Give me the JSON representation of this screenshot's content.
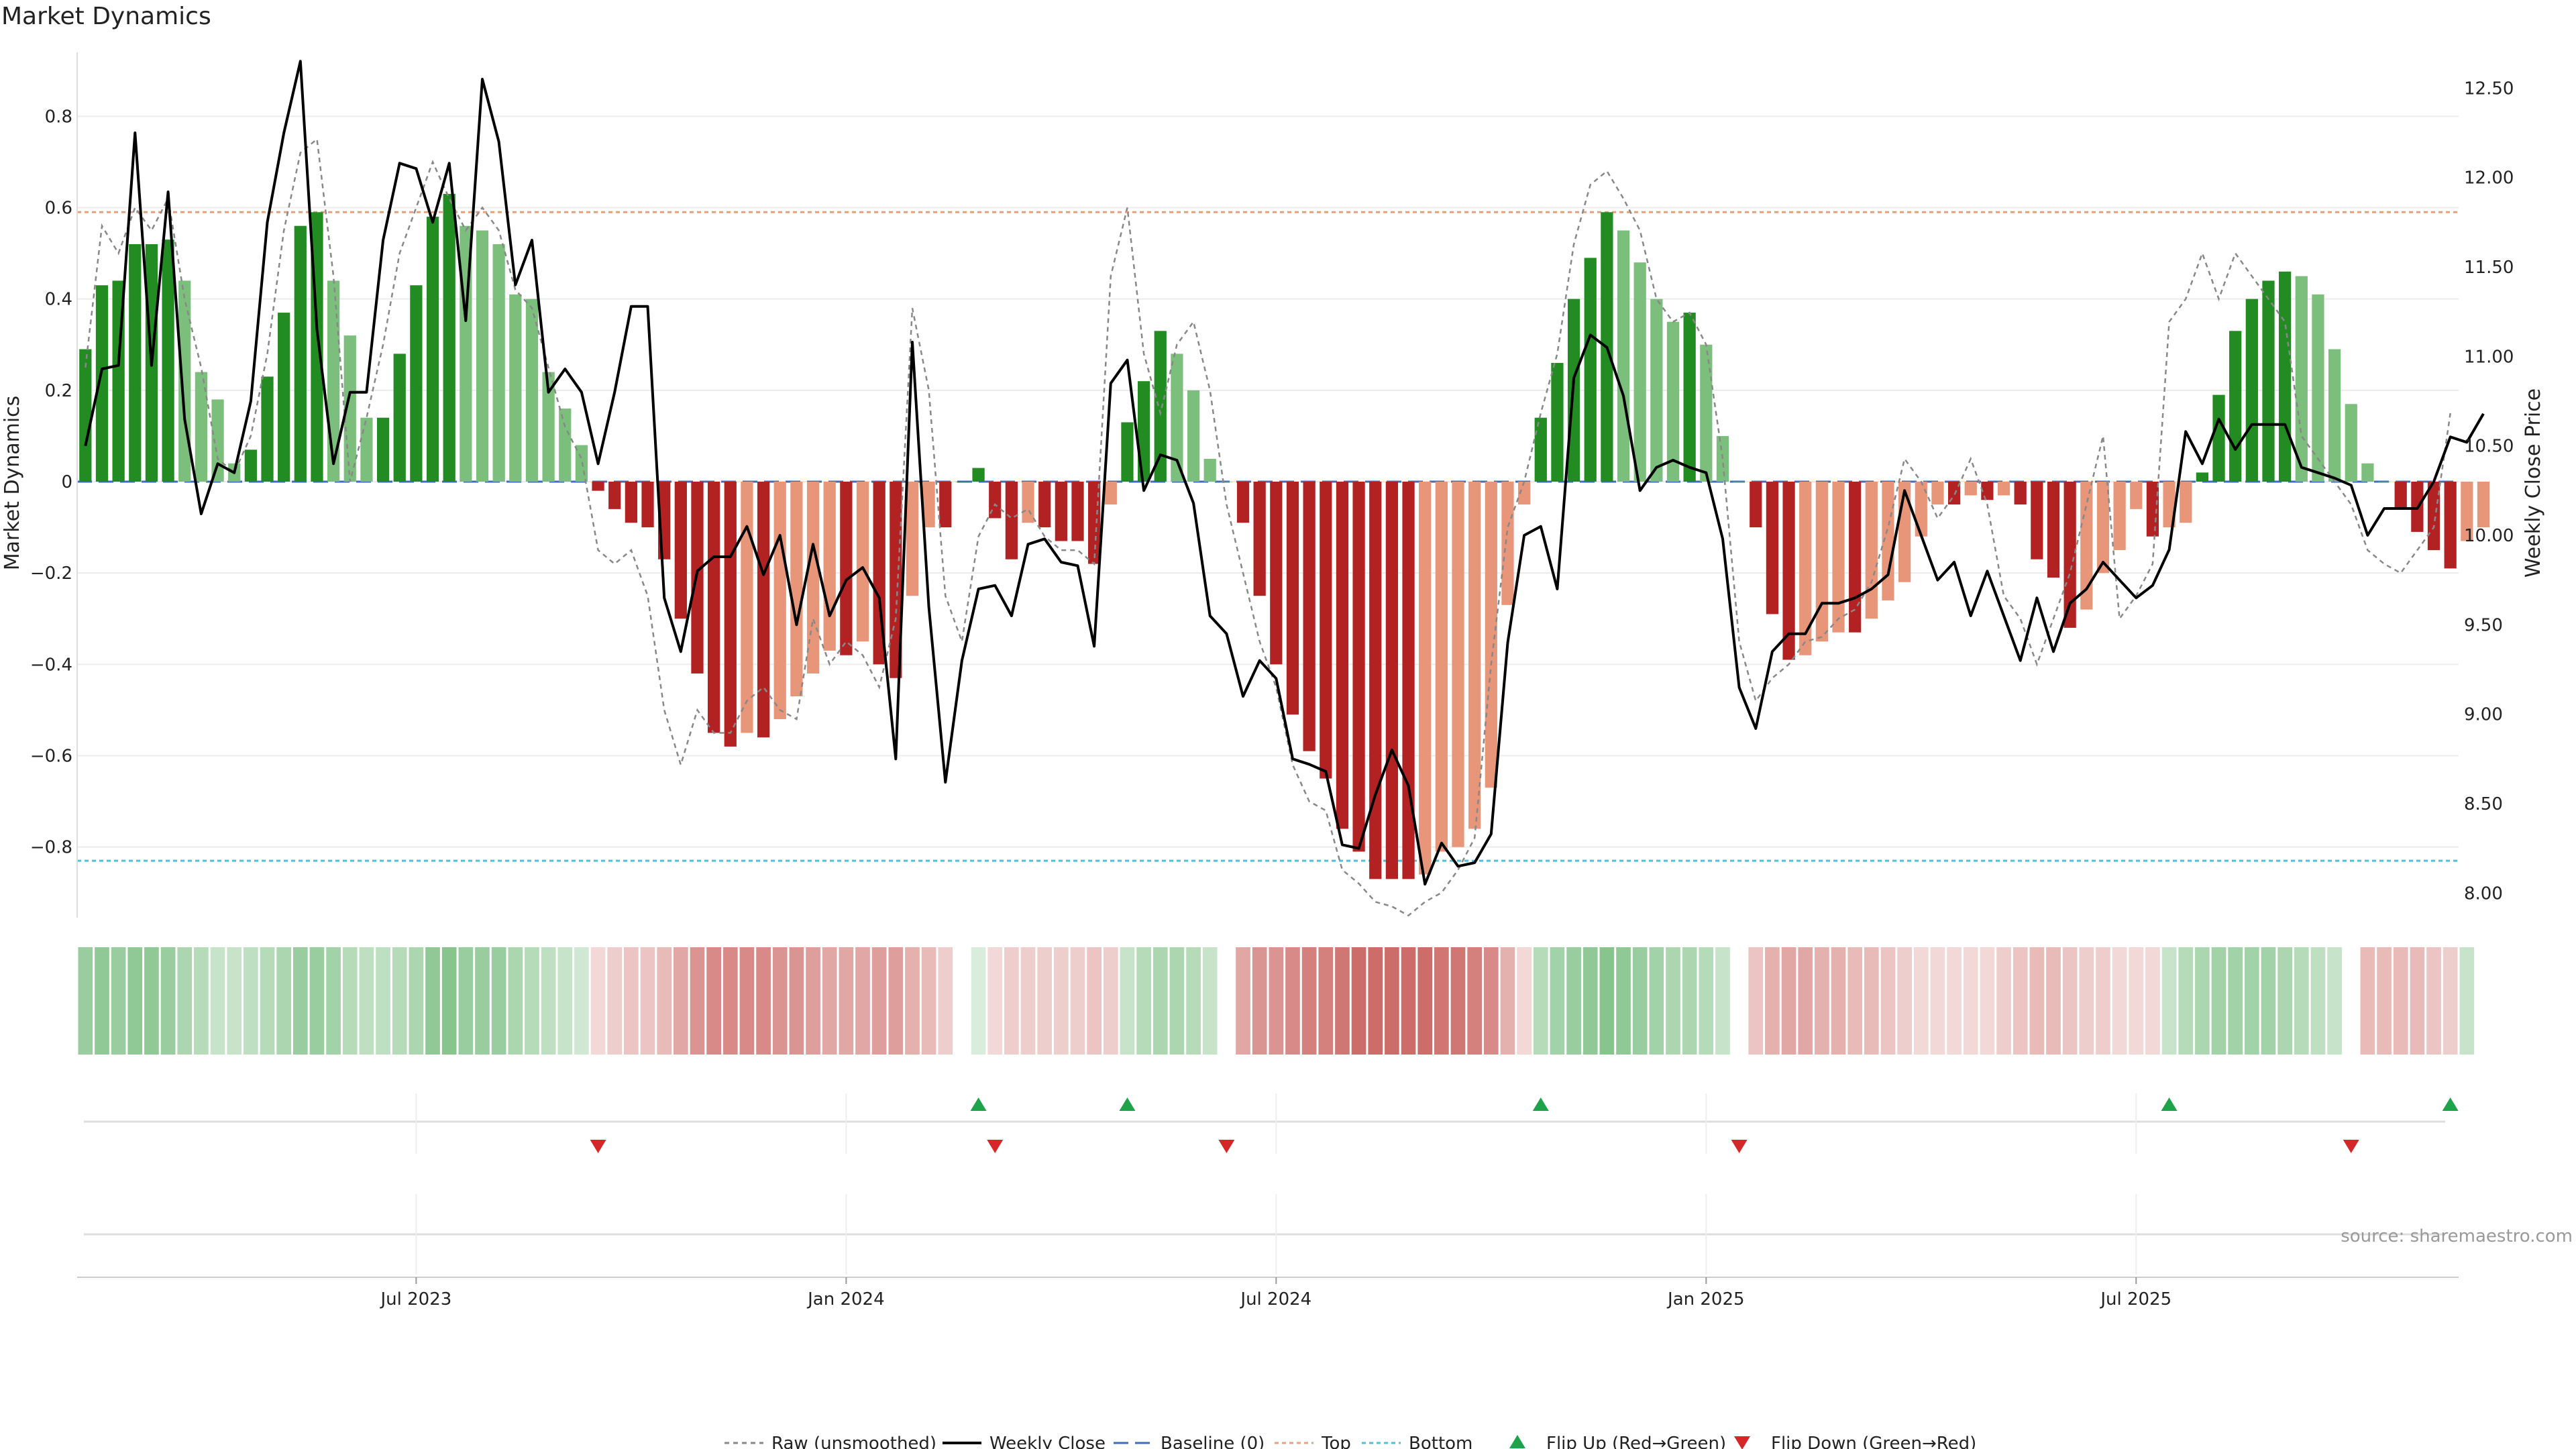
{
  "title": "Market Dynamics",
  "source": "source: sharemaestro.com",
  "colors": {
    "strong_green": "#228B22",
    "light_green": "#7CBF7C",
    "strong_red": "#B22222",
    "light_red": "#E8967A",
    "price_line": "#000000",
    "raw_line": "#888888",
    "baseline": "#3B6FB6",
    "top": "#E8A07C",
    "bottom": "#4FC1D6",
    "flip_up": "#1FA34A",
    "flip_down": "#D62728"
  },
  "legend": [
    "Raw (unsmoothed)",
    "Weekly Close",
    "Baseline (0)",
    "Top",
    "Bottom",
    "Flip Up (Red→Green)",
    "Flip Down (Green→Red)"
  ],
  "chart_data": {
    "type": "bar",
    "ylabel_left": "Market Dynamics",
    "ylabel_right": "Weekly Close Price",
    "left_ticks": [
      "0.8",
      "0.6",
      "0.4",
      "0.2",
      "0",
      "−0.2",
      "−0.4",
      "−0.6",
      "−0.8"
    ],
    "right_ticks": [
      "12.50",
      "12.00",
      "11.50",
      "11.00",
      "10.50",
      "10.00",
      "9.50",
      "9.00",
      "8.50",
      "8.00"
    ],
    "x_ticks": [
      "Jul 2023",
      "Jan 2024",
      "Jul 2024",
      "Jan 2025",
      "Jul 2025"
    ],
    "ylim_left": [
      -0.94,
      0.94
    ],
    "ylim_right": [
      7.9,
      12.7
    ],
    "top_level": 0.59,
    "bottom_level": -0.83,
    "baseline": 0,
    "weeks": 144,
    "momentum": [
      0.29,
      0.43,
      0.44,
      0.52,
      0.52,
      0.53,
      0.44,
      0.24,
      0.18,
      0.04,
      0.07,
      0.23,
      0.37,
      0.56,
      0.59,
      0.44,
      0.32,
      0.14,
      0.14,
      0.28,
      0.43,
      0.58,
      0.63,
      0.56,
      0.55,
      0.52,
      0.41,
      0.4,
      0.24,
      0.16,
      0.08,
      -0.02,
      -0.06,
      -0.09,
      -0.1,
      -0.17,
      -0.3,
      -0.42,
      -0.55,
      -0.58,
      -0.55,
      -0.56,
      -0.52,
      -0.47,
      -0.42,
      -0.37,
      -0.38,
      -0.35,
      -0.4,
      -0.43,
      -0.25,
      -0.1,
      -0.1,
      0.0,
      0.03,
      -0.08,
      -0.17,
      -0.09,
      -0.1,
      -0.13,
      -0.13,
      -0.18,
      -0.05,
      0.13,
      0.22,
      0.33,
      0.28,
      0.2,
      0.05,
      0.0,
      -0.09,
      -0.25,
      -0.4,
      -0.51,
      -0.59,
      -0.65,
      -0.76,
      -0.81,
      -0.87,
      -0.87,
      -0.87,
      -0.86,
      -0.81,
      -0.8,
      -0.76,
      -0.67,
      -0.27,
      -0.05,
      0.14,
      0.26,
      0.4,
      0.49,
      0.59,
      0.55,
      0.48,
      0.4,
      0.35,
      0.37,
      0.3,
      0.1,
      0.0,
      -0.1,
      -0.29,
      -0.39,
      -0.38,
      -0.35,
      -0.33,
      -0.33,
      -0.3,
      -0.26,
      -0.22,
      -0.12,
      -0.05,
      -0.05,
      -0.03,
      -0.04,
      -0.03,
      -0.05,
      -0.17,
      -0.21,
      -0.32,
      -0.28,
      -0.2,
      -0.15,
      -0.06,
      -0.12,
      -0.1,
      -0.09,
      0.02,
      0.19,
      0.33,
      0.4,
      0.44,
      0.46,
      0.45,
      0.41,
      0.29,
      0.17,
      0.04,
      0.0,
      -0.06,
      -0.11,
      -0.15,
      -0.19,
      -0.13,
      -0.1
    ],
    "weekly_close": [
      10.5,
      10.93,
      10.95,
      12.25,
      10.95,
      11.92,
      10.65,
      10.12,
      10.4,
      10.35,
      10.75,
      11.75,
      12.25,
      12.65,
      11.15,
      10.4,
      10.8,
      10.8,
      11.65,
      12.08,
      12.05,
      11.75,
      12.08,
      11.2,
      12.55,
      12.2,
      11.4,
      11.65,
      10.8,
      10.93,
      10.8,
      10.4,
      10.8,
      11.28,
      11.28,
      9.65,
      9.35,
      9.8,
      9.88,
      9.88,
      10.05,
      9.78,
      10.0,
      9.5,
      9.95,
      9.55,
      9.75,
      9.82,
      9.65,
      8.75,
      11.08,
      9.6,
      8.62,
      9.3,
      9.7,
      9.72,
      9.55,
      9.95,
      9.98,
      9.85,
      9.83,
      9.38,
      10.85,
      10.98,
      10.25,
      10.45,
      10.42,
      10.18,
      9.55,
      9.45,
      9.1,
      9.3,
      9.2,
      8.75,
      8.72,
      8.68,
      8.27,
      8.25,
      8.55,
      8.8,
      8.6,
      8.05,
      8.28,
      8.15,
      8.17,
      8.33,
      9.4,
      10.0,
      10.05,
      9.7,
      10.88,
      11.12,
      11.05,
      10.78,
      10.25,
      10.38,
      10.42,
      10.38,
      10.35,
      9.98,
      9.15,
      8.92,
      9.35,
      9.45,
      9.45,
      9.62,
      9.62,
      9.65,
      9.7,
      9.78,
      10.25,
      10.0,
      9.75,
      9.85,
      9.55,
      9.8,
      9.55,
      9.3,
      9.65,
      9.35,
      9.62,
      9.7,
      9.85,
      9.75,
      9.65,
      9.72,
      9.92,
      10.58,
      10.4,
      10.65,
      10.48,
      10.62,
      10.62,
      10.62,
      10.38,
      10.35,
      10.32,
      10.28,
      10.0,
      10.15,
      10.15,
      10.15,
      10.3,
      10.55,
      10.52,
      10.68
    ],
    "raw_momentum": [
      0.25,
      0.56,
      0.5,
      0.6,
      0.55,
      0.62,
      0.4,
      0.25,
      0.05,
      0.02,
      0.1,
      0.28,
      0.55,
      0.72,
      0.75,
      0.45,
      0.0,
      0.14,
      0.3,
      0.5,
      0.6,
      0.7,
      0.62,
      0.55,
      0.6,
      0.55,
      0.42,
      0.38,
      0.25,
      0.12,
      0.05,
      -0.15,
      -0.18,
      -0.15,
      -0.25,
      -0.5,
      -0.62,
      -0.5,
      -0.55,
      -0.55,
      -0.48,
      -0.45,
      -0.5,
      -0.52,
      -0.3,
      -0.4,
      -0.35,
      -0.38,
      -0.45,
      -0.3,
      0.38,
      0.2,
      -0.25,
      -0.35,
      -0.12,
      -0.05,
      -0.08,
      -0.06,
      -0.12,
      -0.15,
      -0.15,
      -0.18,
      0.45,
      0.6,
      0.28,
      0.15,
      0.3,
      0.35,
      0.2,
      -0.05,
      -0.2,
      -0.35,
      -0.45,
      -0.62,
      -0.7,
      -0.72,
      -0.85,
      -0.88,
      -0.92,
      -0.93,
      -0.95,
      -0.92,
      -0.9,
      -0.85,
      -0.78,
      -0.4,
      -0.1,
      0.0,
      0.15,
      0.28,
      0.52,
      0.65,
      0.68,
      0.62,
      0.55,
      0.4,
      0.35,
      0.37,
      0.3,
      0.05,
      -0.35,
      -0.48,
      -0.43,
      -0.4,
      -0.35,
      -0.34,
      -0.3,
      -0.28,
      -0.22,
      -0.1,
      0.05,
      0.0,
      -0.08,
      -0.03,
      0.05,
      -0.05,
      -0.25,
      -0.3,
      -0.4,
      -0.3,
      -0.2,
      -0.05,
      0.1,
      -0.3,
      -0.25,
      -0.18,
      0.35,
      0.4,
      0.5,
      0.4,
      0.5,
      0.45,
      0.4,
      0.35,
      0.1,
      0.05,
      0.0,
      -0.05,
      -0.15,
      -0.18,
      -0.2,
      -0.15,
      -0.1,
      0.15
    ],
    "heat_strip": [
      0.55,
      0.6,
      0.55,
      0.6,
      0.6,
      0.55,
      0.45,
      0.4,
      0.3,
      0.3,
      0.35,
      0.4,
      0.45,
      0.55,
      0.55,
      0.5,
      0.4,
      0.35,
      0.35,
      0.4,
      0.45,
      0.6,
      0.65,
      0.55,
      0.55,
      0.55,
      0.45,
      0.4,
      0.35,
      0.3,
      0.25,
      -0.2,
      -0.25,
      -0.3,
      -0.3,
      -0.35,
      -0.45,
      -0.55,
      -0.6,
      -0.6,
      -0.6,
      -0.6,
      -0.55,
      -0.55,
      -0.5,
      -0.45,
      -0.45,
      -0.45,
      -0.5,
      -0.5,
      -0.4,
      -0.35,
      -0.25,
      0.0,
      0.2,
      -0.2,
      -0.25,
      -0.25,
      -0.25,
      -0.25,
      -0.25,
      -0.3,
      -0.25,
      0.3,
      0.4,
      0.45,
      0.45,
      0.4,
      0.3,
      0.0,
      -0.45,
      -0.55,
      -0.55,
      -0.6,
      -0.65,
      -0.65,
      -0.7,
      -0.75,
      -0.75,
      -0.75,
      -0.75,
      -0.75,
      -0.7,
      -0.7,
      -0.65,
      -0.6,
      -0.4,
      -0.2,
      0.4,
      0.5,
      0.55,
      0.6,
      0.65,
      0.6,
      0.55,
      0.5,
      0.45,
      0.45,
      0.4,
      0.3,
      0.0,
      -0.3,
      -0.4,
      -0.45,
      -0.45,
      -0.4,
      -0.4,
      -0.35,
      -0.35,
      -0.3,
      -0.25,
      -0.2,
      -0.2,
      -0.2,
      -0.2,
      -0.2,
      -0.25,
      -0.3,
      -0.35,
      -0.35,
      -0.3,
      -0.25,
      -0.25,
      -0.2,
      -0.2,
      -0.2,
      0.3,
      0.4,
      0.45,
      0.5,
      0.5,
      0.5,
      0.5,
      0.45,
      0.4,
      0.35,
      0.3,
      0.0,
      -0.35,
      -0.35,
      -0.35,
      -0.35,
      -0.3,
      -0.25,
      0.3
    ],
    "flip_up_weeks": [
      54,
      63,
      88,
      126,
      143
    ],
    "flip_down_weeks": [
      31,
      55,
      69,
      100,
      137
    ]
  }
}
